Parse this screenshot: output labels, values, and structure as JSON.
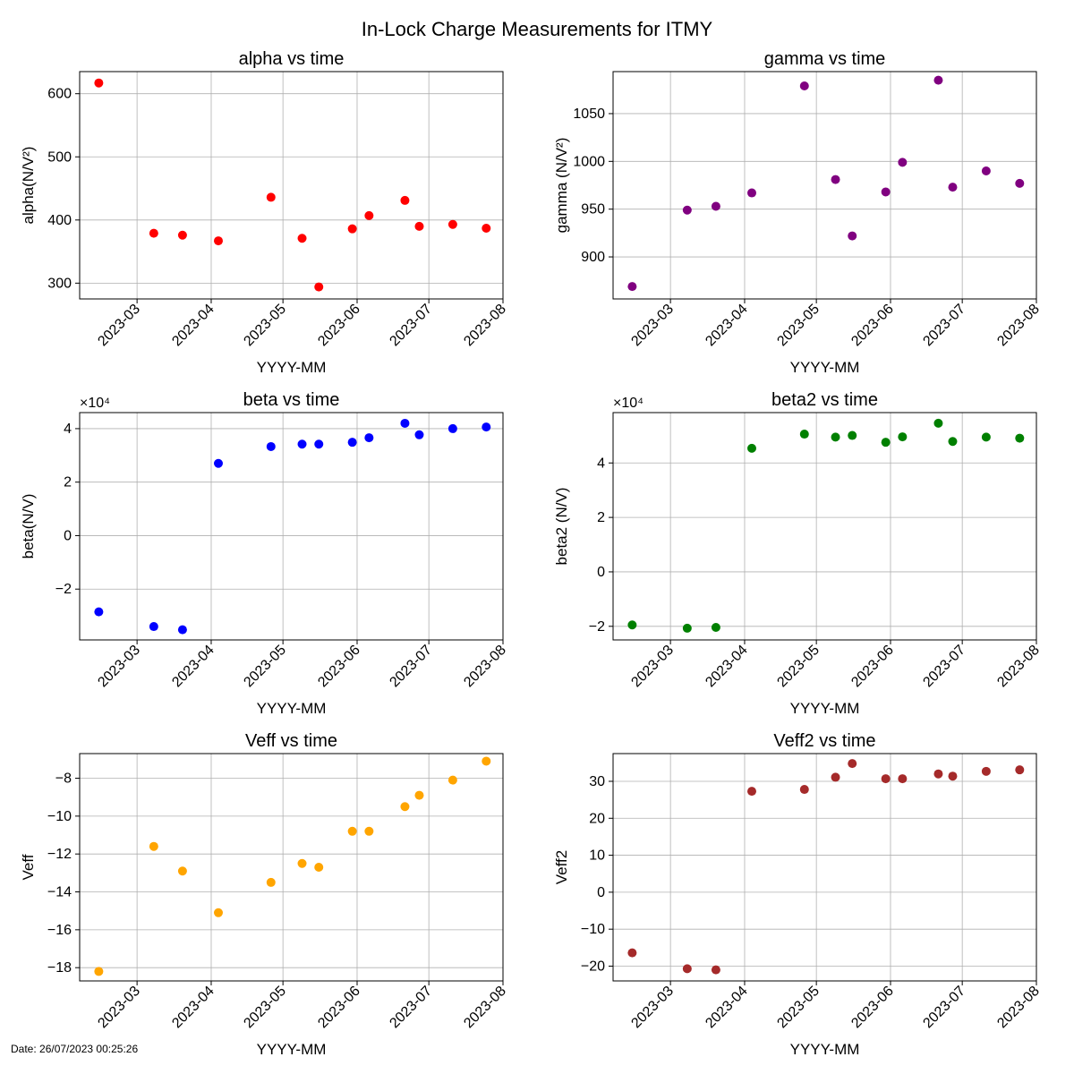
{
  "figure": {
    "title": "In-Lock Charge Measurements for ITMY",
    "footer": "Date: 26/07/2023 00:25:26"
  },
  "chart_data": [
    {
      "type": "scatter",
      "title": "alpha vs time",
      "xlabel": "YYYY-MM",
      "ylabel": "alpha(N/V²)",
      "color": "#ff0000",
      "ylim": [
        275,
        635
      ],
      "yticks": [
        300,
        400,
        500,
        600
      ],
      "ytick_labels": [
        "300",
        "400",
        "500",
        "600"
      ],
      "multiplier": "",
      "x": [
        "2023-02-13",
        "2023-03-08",
        "2023-03-20",
        "2023-04-04",
        "2023-04-26",
        "2023-05-09",
        "2023-05-16",
        "2023-05-30",
        "2023-06-06",
        "2023-06-21",
        "2023-06-27",
        "2023-07-11",
        "2023-07-25"
      ],
      "y": [
        617,
        379,
        376,
        367,
        436,
        371,
        294,
        386,
        407,
        431,
        390,
        393,
        387
      ]
    },
    {
      "type": "scatter",
      "title": "gamma vs time",
      "xlabel": "YYYY-MM",
      "ylabel": "gamma (N/V²)",
      "color": "#800080",
      "ylim": [
        856,
        1094
      ],
      "yticks": [
        900,
        950,
        1000,
        1050
      ],
      "ytick_labels": [
        "900",
        "950",
        "1000",
        "1050"
      ],
      "multiplier": "",
      "x": [
        "2023-02-13",
        "2023-03-08",
        "2023-03-20",
        "2023-04-04",
        "2023-04-26",
        "2023-05-09",
        "2023-05-16",
        "2023-05-30",
        "2023-06-06",
        "2023-06-21",
        "2023-06-27",
        "2023-07-11",
        "2023-07-25"
      ],
      "y": [
        869,
        949,
        953,
        967,
        1079,
        981,
        922,
        968,
        999,
        1085,
        973,
        990,
        977
      ]
    },
    {
      "type": "scatter",
      "title": "beta vs time",
      "xlabel": "YYYY-MM",
      "ylabel": "beta(N/V)",
      "color": "#0000ff",
      "ylim": [
        -39000,
        46000
      ],
      "yticks": [
        -20000,
        0,
        20000,
        40000
      ],
      "ytick_labels": [
        "−2",
        "0",
        "2",
        "4"
      ],
      "multiplier": "×10⁴",
      "x": [
        "2023-02-13",
        "2023-03-08",
        "2023-03-20",
        "2023-04-04",
        "2023-04-26",
        "2023-05-09",
        "2023-05-16",
        "2023-05-30",
        "2023-06-06",
        "2023-06-21",
        "2023-06-27",
        "2023-07-11",
        "2023-07-25"
      ],
      "y": [
        -28500,
        -34000,
        -35200,
        27000,
        33300,
        34200,
        34200,
        34900,
        36600,
        42000,
        37700,
        40000,
        40600
      ]
    },
    {
      "type": "scatter",
      "title": "beta2 vs time",
      "xlabel": "YYYY-MM",
      "ylabel": "beta2 (N/V)",
      "color": "#008000",
      "ylim": [
        -25000,
        58500
      ],
      "yticks": [
        -20000,
        0,
        20000,
        40000
      ],
      "ytick_labels": [
        "−2",
        "0",
        "2",
        "4"
      ],
      "multiplier": "×10⁴",
      "x": [
        "2023-02-13",
        "2023-03-08",
        "2023-03-20",
        "2023-04-04",
        "2023-04-26",
        "2023-05-09",
        "2023-05-16",
        "2023-05-30",
        "2023-06-06",
        "2023-06-21",
        "2023-06-27",
        "2023-07-11",
        "2023-07-25"
      ],
      "y": [
        -19500,
        -20700,
        -20400,
        45400,
        50600,
        49500,
        50100,
        47600,
        49600,
        54600,
        47900,
        49500,
        49100
      ]
    },
    {
      "type": "scatter",
      "title": "Veff vs time",
      "xlabel": "YYYY-MM",
      "ylabel": "Veff",
      "color": "#ffa500",
      "ylim": [
        -18.7,
        -6.7
      ],
      "yticks": [
        -18,
        -16,
        -14,
        -12,
        -10,
        -8
      ],
      "ytick_labels": [
        "−18",
        "−16",
        "−14",
        "−12",
        "−10",
        "−8"
      ],
      "multiplier": "",
      "x": [
        "2023-02-13",
        "2023-03-08",
        "2023-03-20",
        "2023-04-04",
        "2023-04-26",
        "2023-05-09",
        "2023-05-16",
        "2023-05-30",
        "2023-06-06",
        "2023-06-21",
        "2023-06-27",
        "2023-07-11",
        "2023-07-25"
      ],
      "y": [
        -18.2,
        -11.6,
        -12.9,
        -15.1,
        -13.5,
        -12.5,
        -12.7,
        -10.8,
        -10.8,
        -9.5,
        -8.9,
        -8.1,
        -7.1
      ]
    },
    {
      "type": "scatter",
      "title": "Veff2 vs time",
      "xlabel": "YYYY-MM",
      "ylabel": "Veff2",
      "color": "#a52a2a",
      "ylim": [
        -24,
        37.5
      ],
      "yticks": [
        -20,
        -10,
        0,
        10,
        20,
        30
      ],
      "ytick_labels": [
        "−20",
        "−10",
        "0",
        "10",
        "20",
        "30"
      ],
      "multiplier": "",
      "x": [
        "2023-02-13",
        "2023-03-08",
        "2023-03-20",
        "2023-04-04",
        "2023-04-26",
        "2023-05-09",
        "2023-05-16",
        "2023-05-30",
        "2023-06-06",
        "2023-06-21",
        "2023-06-27",
        "2023-07-11",
        "2023-07-25"
      ],
      "y": [
        -16.4,
        -20.7,
        -21.0,
        27.3,
        27.8,
        31.1,
        34.8,
        30.7,
        30.7,
        32.0,
        31.4,
        32.7,
        33.1
      ]
    }
  ],
  "xaxis": {
    "xlim": [
      "2023-02-05",
      "2023-08-01"
    ],
    "ticks": [
      "2023-03-01",
      "2023-04-01",
      "2023-05-01",
      "2023-06-01",
      "2023-07-01",
      "2023-08-01"
    ],
    "tick_labels": [
      "2023-03",
      "2023-04",
      "2023-05",
      "2023-06",
      "2023-07",
      "2023-08"
    ]
  }
}
